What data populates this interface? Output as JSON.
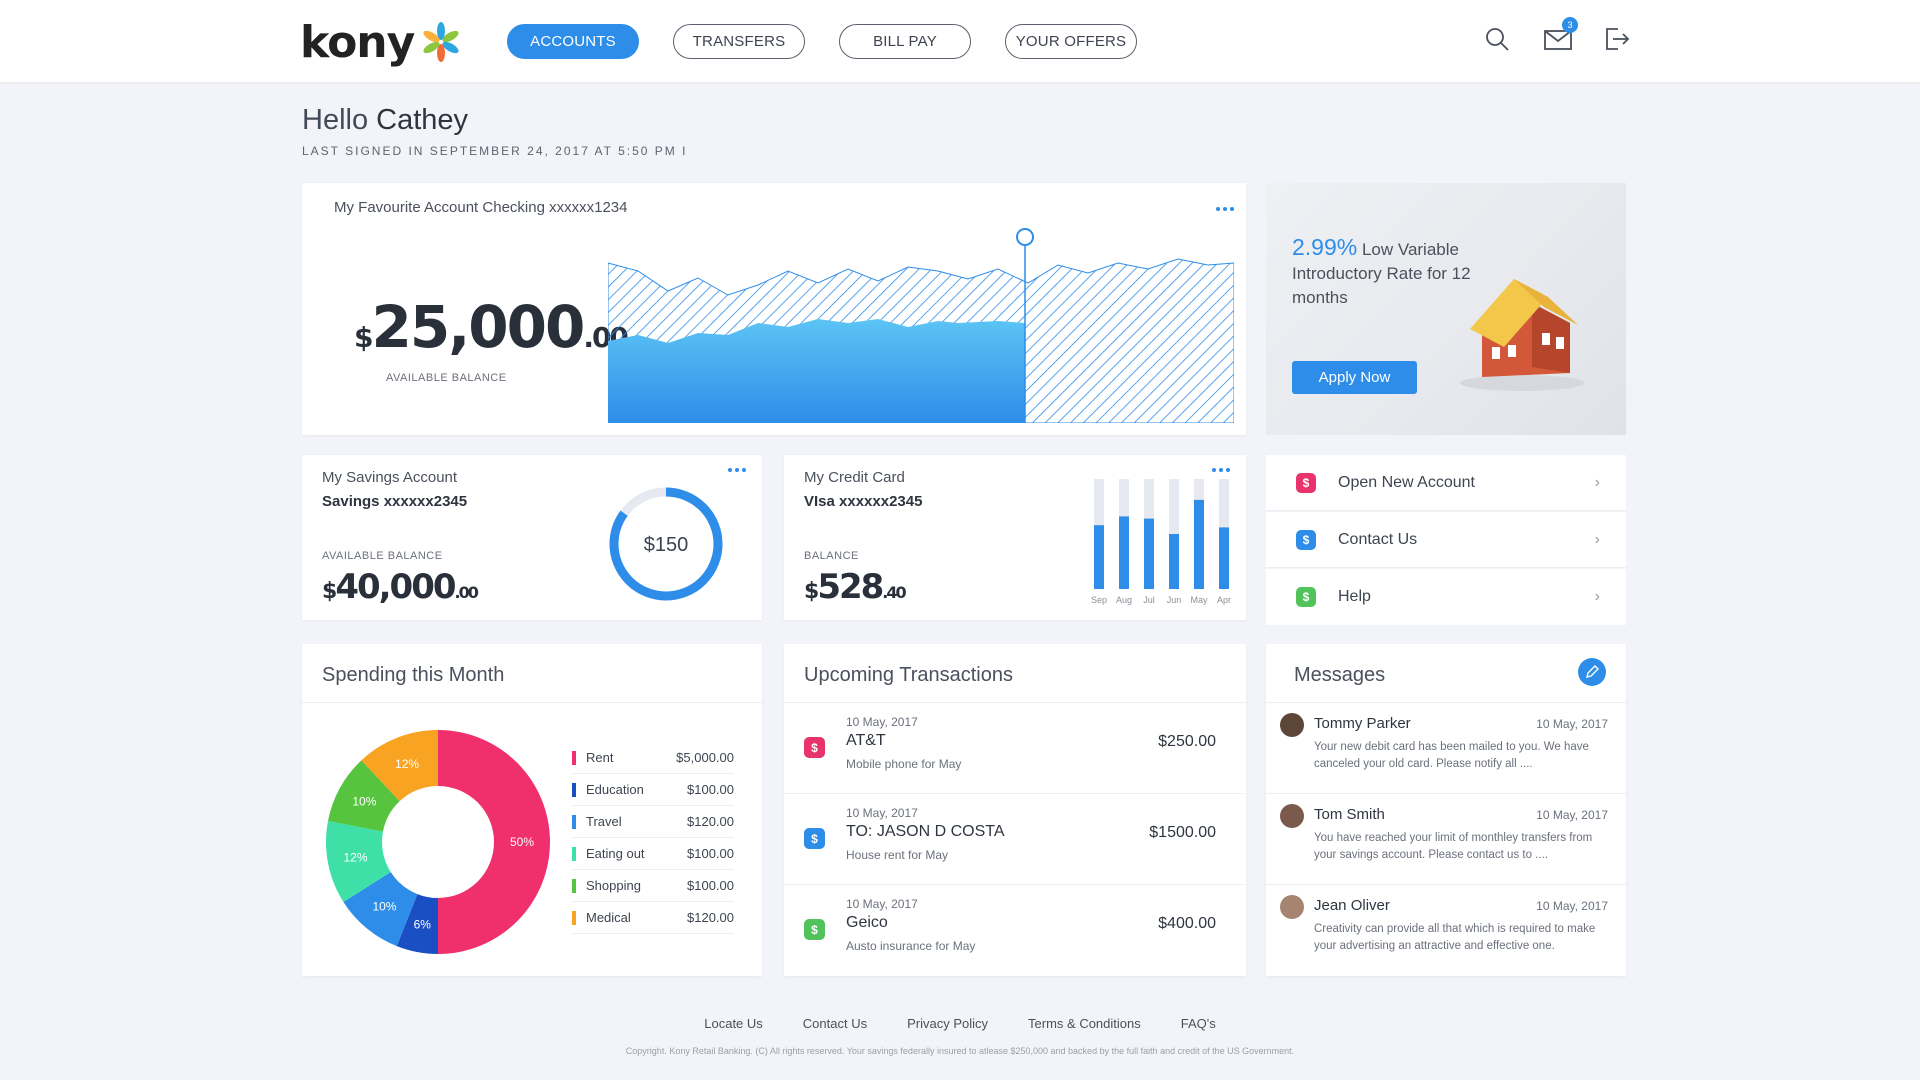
{
  "brand": {
    "name": "kony"
  },
  "nav": {
    "items": [
      {
        "label": "ACCOUNTS",
        "active": true
      },
      {
        "label": "TRANSFERS",
        "active": false
      },
      {
        "label": "BILL PAY",
        "active": false
      },
      {
        "label": "YOUR OFFERS",
        "active": false
      }
    ]
  },
  "header": {
    "icons": [
      "search-icon",
      "mail-icon",
      "logout-icon"
    ],
    "unread_count": "3"
  },
  "greeting": {
    "hello": "Hello",
    "name": "Cathey",
    "last_signed": "LAST SIGNED IN SEPTEMBER 24, 2017 AT 5:50 PM I"
  },
  "favourite": {
    "title": "My Favourite Account  Checking xxxxxx1234",
    "currency": "$",
    "whole": "25,000",
    "cents": ".00",
    "label": "AVAILABLE BALANCE"
  },
  "promo": {
    "rate": "2.99%",
    "text": "Low Variable Introductory Rate for 12 months",
    "button": "Apply Now"
  },
  "savings": {
    "title": "My Savings Account",
    "account": "Savings xxxxxx2345",
    "label": "AVAILABLE BALANCE",
    "currency": "$",
    "whole": "40,000",
    "cents": ".00",
    "ring_value": "$150",
    "ring_fraction": 0.85
  },
  "credit": {
    "title": "My Credit Card",
    "account": "VIsa xxxxxx2345",
    "label": "BALANCE",
    "currency": "$",
    "whole": "528",
    "cents": ".40",
    "bars": [
      {
        "month": "Sep",
        "fraction": 0.58
      },
      {
        "month": "Aug",
        "fraction": 0.66
      },
      {
        "month": "Jul",
        "fraction": 0.64
      },
      {
        "month": "Jun",
        "fraction": 0.5
      },
      {
        "month": "May",
        "fraction": 0.81
      },
      {
        "month": "Apr",
        "fraction": 0.56
      }
    ]
  },
  "quick_links": [
    {
      "label": "Open New Account",
      "color": "#e8336d",
      "icon": "dollar-icon"
    },
    {
      "label": "Contact Us",
      "color": "#2e8de8",
      "icon": "dollar-icon"
    },
    {
      "label": "Help",
      "color": "#52c35a",
      "icon": "dollar-icon"
    }
  ],
  "spending": {
    "title": "Spending this Month",
    "items": [
      {
        "label": "Rent",
        "value": "$5,000.00",
        "color": "#f0306c",
        "percent": 50
      },
      {
        "label": "Education",
        "value": "$100.00",
        "color": "#1a4fc4",
        "percent": 6
      },
      {
        "label": "Travel",
        "value": "$120.00",
        "color": "#2e8de8",
        "percent": 10
      },
      {
        "label": "Eating out",
        "value": "$100.00",
        "color": "#3fe0a8",
        "percent": 12
      },
      {
        "label": "Shopping",
        "value": "$100.00",
        "color": "#56c43e",
        "percent": 10
      },
      {
        "label": "Medical",
        "value": "$120.00",
        "color": "#f8a321",
        "percent": 12
      }
    ]
  },
  "transactions": {
    "title": "Upcoming Transactions",
    "items": [
      {
        "date": "10 May, 2017",
        "name": "AT&T",
        "note": "Mobile phone for May",
        "amount": "$250.00",
        "color": "#e8336d"
      },
      {
        "date": "10 May, 2017",
        "name": "TO: JASON D COSTA",
        "note": "House rent for May",
        "amount": "$1500.00",
        "color": "#2e8de8"
      },
      {
        "date": "10 May, 2017",
        "name": "Geico",
        "note": "Austo insurance for May",
        "amount": "$400.00",
        "color": "#52c35a"
      }
    ]
  },
  "messages": {
    "title": "Messages",
    "items": [
      {
        "name": "Tommy Parker",
        "date": "10 May, 2017",
        "body": "Your new debit card has been mailed to you. We have canceled your old card. Please notify all ....",
        "avatar_color": "#5b4638"
      },
      {
        "name": "Tom Smith",
        "date": "10 May, 2017",
        "body": "You have reached your limit of monthley transfers from your savings account. Please contact us to ....",
        "avatar_color": "#7a5a4a"
      },
      {
        "name": "Jean Oliver",
        "date": "10 May, 2017",
        "body": "Creativity can provide all that which is required to make your advertising an attractive and effective one.",
        "avatar_color": "#a58470"
      }
    ]
  },
  "footer": {
    "links": [
      "Locate Us",
      "Contact Us",
      "Privacy Policy",
      "Terms & Conditions",
      "FAQ's"
    ],
    "copyright": "Copyright. Kony Retail Banking. (C) All rights reserved.  Your savings federally insured to atlease $250,000 and backed by the full faith and credit of the US Government."
  }
}
